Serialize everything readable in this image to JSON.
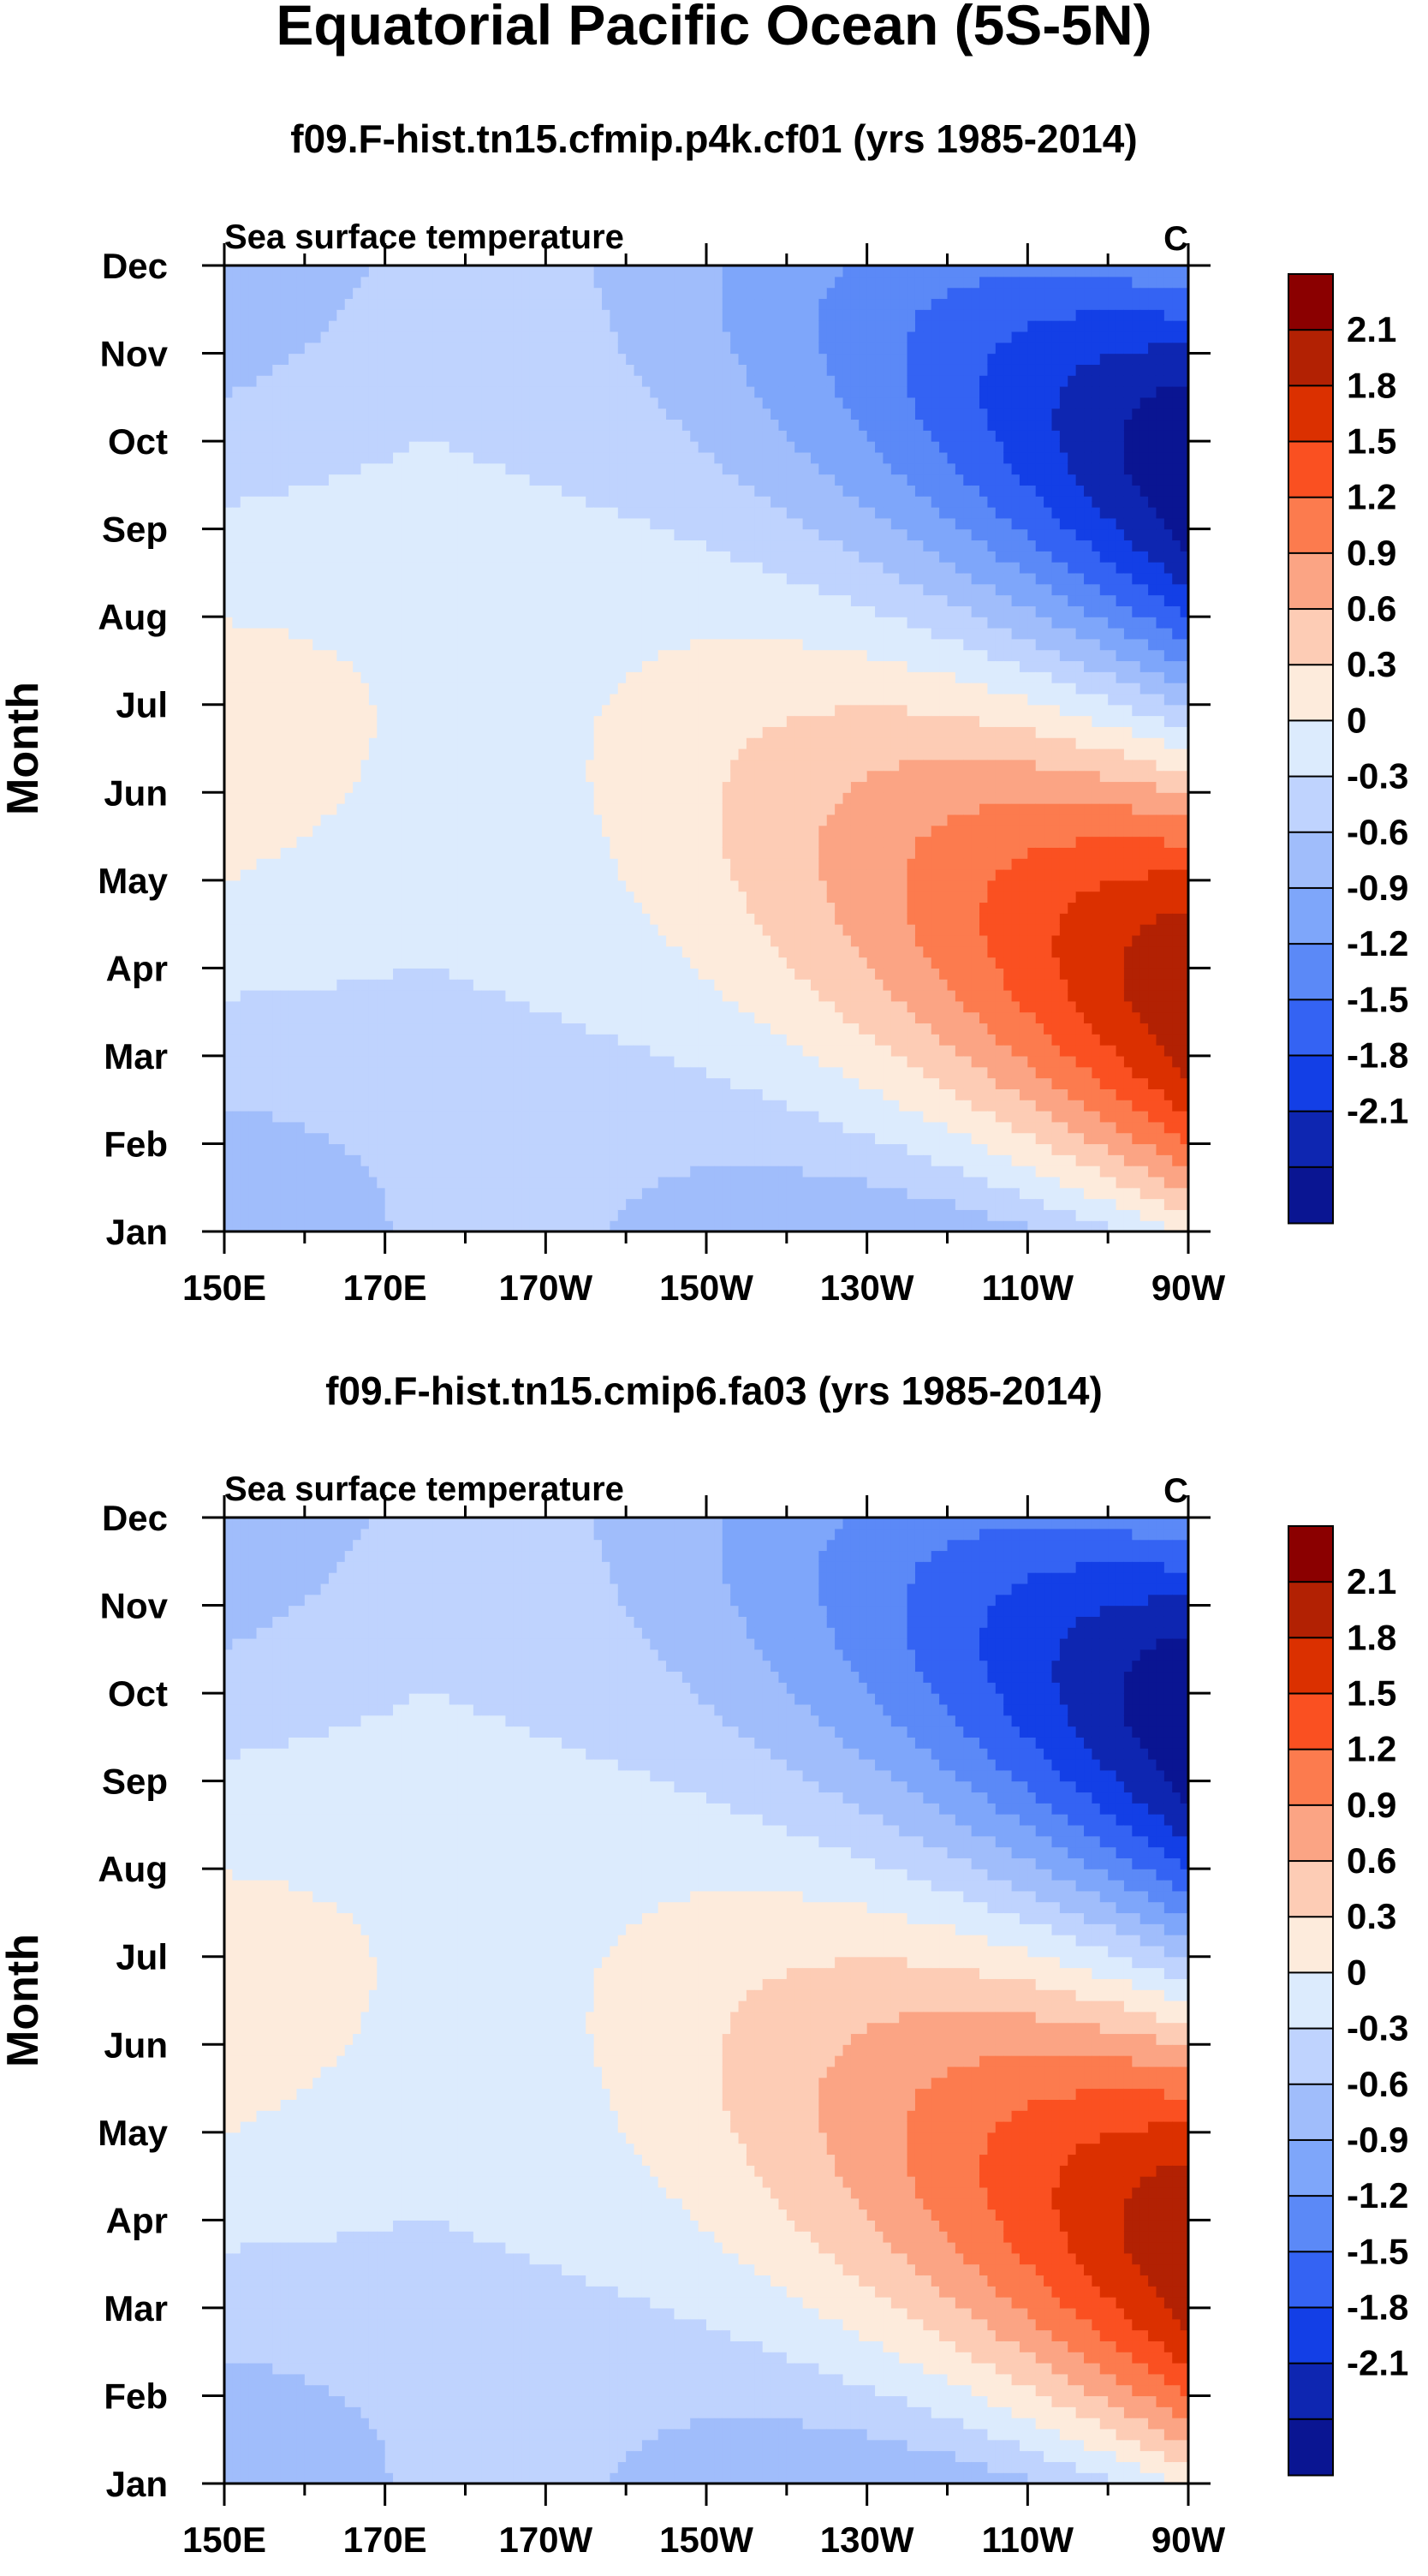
{
  "figure": {
    "main_title": "Equatorial Pacific Ocean (5S-5N)"
  },
  "chart_data": [
    {
      "type": "heatmap",
      "title": "f09.F-hist.tn15.cfmip.p4k.cf01 (yrs 1985-2014)",
      "subtitle": "Sea surface temperature",
      "units": "C",
      "xlabel": "",
      "ylabel": "Month",
      "x_ticks": [
        "150E",
        "170E",
        "170W",
        "150W",
        "130W",
        "110W",
        "90W"
      ],
      "x_tick_lon_e": [
        150,
        170,
        190,
        210,
        230,
        250,
        270
      ],
      "x_range_lon_e": [
        150,
        270
      ],
      "y_ticks": [
        "Jan",
        "Feb",
        "Mar",
        "Apr",
        "May",
        "Jun",
        "Jul",
        "Aug",
        "Sep",
        "Oct",
        "Nov",
        "Dec"
      ],
      "colorbar": {
        "levels": [
          "2.1",
          "1.8",
          "1.5",
          "1.2",
          "0.9",
          "0.6",
          "0.3",
          "0",
          "-0.3",
          "-0.6",
          "-0.9",
          "-1.2",
          "-1.5",
          "-1.8",
          "-2.1"
        ],
        "colors": [
          "#8b0000",
          "#b22103",
          "#db3000",
          "#fa5021",
          "#fc7b4e",
          "#fba484",
          "#fdccb5",
          "#fdebdc",
          "#dcebfd",
          "#bfd3fe",
          "#a0bdfb",
          "#7ea6fa",
          "#5b89f7",
          "#3463f3",
          "#133fe6",
          "#0e26b1",
          "#0a1592"
        ]
      }
    },
    {
      "type": "heatmap",
      "title": "f09.F-hist.tn15.cmip6.fa03 (yrs 1985-2014)",
      "subtitle": "Sea surface temperature",
      "units": "C",
      "xlabel": "",
      "ylabel": "Month",
      "x_ticks": [
        "150E",
        "170E",
        "170W",
        "150W",
        "130W",
        "110W",
        "90W"
      ],
      "x_tick_lon_e": [
        150,
        170,
        190,
        210,
        230,
        250,
        270
      ],
      "x_range_lon_e": [
        150,
        270
      ],
      "y_ticks": [
        "Jan",
        "Feb",
        "Mar",
        "Apr",
        "May",
        "Jun",
        "Jul",
        "Aug",
        "Sep",
        "Oct",
        "Nov",
        "Dec"
      ],
      "colorbar": {
        "levels": [
          "2.1",
          "1.8",
          "1.5",
          "1.2",
          "0.9",
          "0.6",
          "0.3",
          "0",
          "-0.3",
          "-0.6",
          "-0.9",
          "-1.2",
          "-1.5",
          "-1.8",
          "-2.1"
        ],
        "colors": [
          "#8b0000",
          "#b22103",
          "#db3000",
          "#fa5021",
          "#fc7b4e",
          "#fba484",
          "#fdccb5",
          "#fdebdc",
          "#dcebfd",
          "#bfd3fe",
          "#a0bdfb",
          "#7ea6fa",
          "#5b89f7",
          "#3463f3",
          "#133fe6",
          "#0e26b1",
          "#0a1592"
        ]
      }
    }
  ]
}
